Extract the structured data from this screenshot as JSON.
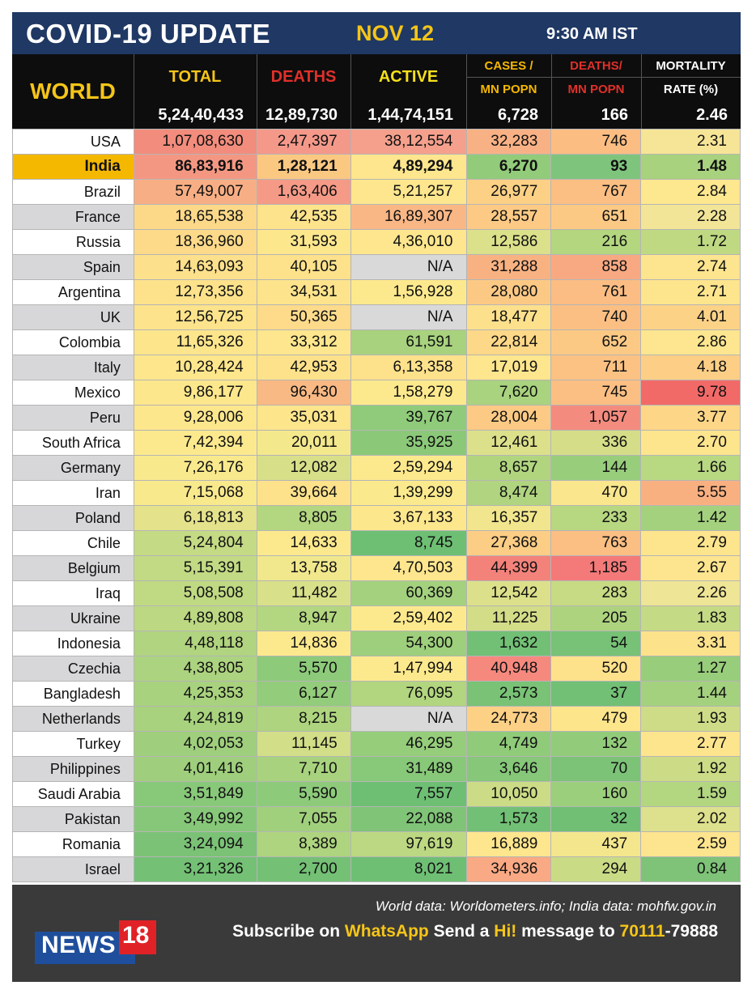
{
  "title": {
    "main": "COVID-19 UPDATE",
    "date": "NOV 12",
    "time": "9:30 AM IST"
  },
  "header": {
    "world_label": "WORLD",
    "columns": [
      {
        "line1": "TOTAL",
        "line2": "",
        "color": "#f5c518"
      },
      {
        "line1": "DEATHS",
        "line2": "",
        "color": "#e0302a"
      },
      {
        "line1": "ACTIVE",
        "line2": "",
        "color": "#f5e01a"
      },
      {
        "line1": "CASES /",
        "line2": "MN POPN",
        "color": "#f5b800"
      },
      {
        "line1": "DEATHS/",
        "line2": "MN POPN",
        "color": "#e0302a"
      },
      {
        "line1": "MORTALITY",
        "line2": "RATE (%)",
        "color": "#ffffff"
      }
    ],
    "world_values": [
      "5,24,40,433",
      "12,89,730",
      "1,44,74,151",
      "6,728",
      "166",
      "2.46"
    ]
  },
  "rows": [
    {
      "country": "USA",
      "total": "1,07,08,630",
      "deaths": "2,47,397",
      "active": "38,12,554",
      "cases_mn": "32,283",
      "deaths_mn": "746",
      "mortality": "2.31",
      "colors": [
        "#f28c7c",
        "#f4988a",
        "#f4a08c",
        "#f8b184",
        "#fbbd82",
        "#f6e596"
      ]
    },
    {
      "country": "India",
      "total": "86,83,916",
      "deaths": "1,28,121",
      "active": "4,89,294",
      "cases_mn": "6,270",
      "deaths_mn": "93",
      "mortality": "1.48",
      "highlight": true,
      "colors": [
        "#f49782",
        "#fbc882",
        "#fde68d",
        "#92cc7a",
        "#7fc47c",
        "#a8d27e"
      ]
    },
    {
      "country": "Brazil",
      "total": "57,49,007",
      "deaths": "1,63,406",
      "active": "5,21,257",
      "cases_mn": "26,977",
      "deaths_mn": "767",
      "mortality": "2.84",
      "colors": [
        "#f8ae84",
        "#f59a87",
        "#fde68d",
        "#fcd185",
        "#fbbe83",
        "#fde78f"
      ]
    },
    {
      "country": "France",
      "total": "18,65,538",
      "deaths": "42,535",
      "active": "16,89,307",
      "cases_mn": "28,557",
      "deaths_mn": "651",
      "mortality": "2.28",
      "colors": [
        "#fcd989",
        "#fde38b",
        "#f9b786",
        "#fcca84",
        "#fcc985",
        "#f2e597"
      ]
    },
    {
      "country": "Russia",
      "total": "18,36,960",
      "deaths": "31,593",
      "active": "4,36,010",
      "cases_mn": "12,586",
      "deaths_mn": "216",
      "mortality": "1.72",
      "colors": [
        "#fcda89",
        "#fde78d",
        "#fde68d",
        "#dbe08a",
        "#b3d67f",
        "#bfd983"
      ]
    },
    {
      "country": "Spain",
      "total": "14,63,093",
      "deaths": "40,105",
      "active": "N/A",
      "cases_mn": "31,288",
      "deaths_mn": "858",
      "mortality": "2.74",
      "colors": [
        "#fde08b",
        "#fde28b",
        "#d9d9d9",
        "#f8b282",
        "#f8a982",
        "#fde48e"
      ]
    },
    {
      "country": "Argentina",
      "total": "12,73,356",
      "deaths": "34,531",
      "active": "1,56,928",
      "cases_mn": "28,080",
      "deaths_mn": "761",
      "mortality": "2.71",
      "colors": [
        "#fde28b",
        "#fde48c",
        "#fde98d",
        "#fcc985",
        "#fbbd83",
        "#fde58e"
      ]
    },
    {
      "country": "UK",
      "total": "12,56,725",
      "deaths": "50,365",
      "active": "N/A",
      "cases_mn": "18,477",
      "deaths_mn": "740",
      "mortality": "4.01",
      "colors": [
        "#fde38b",
        "#fddb8a",
        "#d9d9d9",
        "#fde08c",
        "#fbbf83",
        "#fcd287"
      ]
    },
    {
      "country": "Colombia",
      "total": "11,65,326",
      "deaths": "33,312",
      "active": "61,591",
      "cases_mn": "22,814",
      "deaths_mn": "652",
      "mortality": "2.86",
      "colors": [
        "#fde58c",
        "#fde68d",
        "#a8d27e",
        "#fdd888",
        "#fcc985",
        "#fde68f"
      ]
    },
    {
      "country": "Italy",
      "total": "10,28,424",
      "deaths": "42,953",
      "active": "6,13,358",
      "cases_mn": "17,019",
      "deaths_mn": "711",
      "mortality": "4.18",
      "colors": [
        "#fde68c",
        "#fde28b",
        "#fde18b",
        "#fde68d",
        "#fbc283",
        "#fdcf86"
      ]
    },
    {
      "country": "Mexico",
      "total": "9,86,177",
      "deaths": "96,430",
      "active": "1,58,279",
      "cases_mn": "7,620",
      "deaths_mn": "745",
      "mortality": "9.78",
      "colors": [
        "#fde78c",
        "#f9b984",
        "#fde98d",
        "#a9d37e",
        "#fbbf83",
        "#f26a68"
      ]
    },
    {
      "country": "Peru",
      "total": "9,28,006",
      "deaths": "35,031",
      "active": "39,767",
      "cases_mn": "28,004",
      "deaths_mn": "1,057",
      "mortality": "3.77",
      "colors": [
        "#fde78d",
        "#fde58c",
        "#8fcb7a",
        "#fcca84",
        "#f48b7f",
        "#fdd787"
      ]
    },
    {
      "country": "South Africa",
      "total": "7,42,394",
      "deaths": "20,011",
      "active": "35,925",
      "cases_mn": "12,461",
      "deaths_mn": "336",
      "mortality": "2.70",
      "colors": [
        "#fce98d",
        "#f4e88d",
        "#8bc979",
        "#dce08a",
        "#d5dd88",
        "#fde58e"
      ]
    },
    {
      "country": "Germany",
      "total": "7,26,176",
      "deaths": "12,082",
      "active": "2,59,294",
      "cases_mn": "8,657",
      "deaths_mn": "144",
      "mortality": "1.66",
      "colors": [
        "#f9e98d",
        "#d8df89",
        "#fce98d",
        "#b1d57f",
        "#98cd7b",
        "#b9d882"
      ]
    },
    {
      "country": "Iran",
      "total": "7,15,068",
      "deaths": "39,664",
      "active": "1,39,299",
      "cases_mn": "8,474",
      "deaths_mn": "470",
      "mortality": "5.55",
      "colors": [
        "#f8e98d",
        "#fde28b",
        "#fbe98d",
        "#b0d47f",
        "#f9e68d",
        "#f9b081"
      ]
    },
    {
      "country": "Poland",
      "total": "6,18,813",
      "deaths": "8,805",
      "active": "3,67,133",
      "cases_mn": "16,357",
      "deaths_mn": "233",
      "mortality": "1.42",
      "colors": [
        "#e4e28b",
        "#b3d680",
        "#fde78d",
        "#f1e68d",
        "#b8d781",
        "#a4d17e"
      ]
    },
    {
      "country": "Chile",
      "total": "5,24,804",
      "deaths": "14,633",
      "active": "8,745",
      "cases_mn": "27,368",
      "deaths_mn": "763",
      "mortality": "2.79",
      "colors": [
        "#c4da84",
        "#fde98d",
        "#6ebf74",
        "#fccd85",
        "#fbbe83",
        "#fde58e"
      ]
    },
    {
      "country": "Belgium",
      "total": "5,15,391",
      "deaths": "13,758",
      "active": "4,70,503",
      "cases_mn": "44,399",
      "deaths_mn": "1,185",
      "mortality": "2.67",
      "colors": [
        "#c2da84",
        "#f1e78d",
        "#fde68d",
        "#f3827b",
        "#f37a79",
        "#fde58f"
      ]
    },
    {
      "country": "Iraq",
      "total": "5,08,508",
      "deaths": "11,482",
      "active": "60,369",
      "cases_mn": "12,542",
      "deaths_mn": "283",
      "mortality": "2.26",
      "colors": [
        "#c0d983",
        "#d8e08a",
        "#a4d17e",
        "#dce08a",
        "#c7da84",
        "#efe596"
      ]
    },
    {
      "country": "Ukraine",
      "total": "4,89,808",
      "deaths": "8,947",
      "active": "2,59,402",
      "cases_mn": "11,225",
      "deaths_mn": "205",
      "mortality": "1.83",
      "colors": [
        "#bcd882",
        "#b3d680",
        "#fce98d",
        "#d3dd88",
        "#aed37f",
        "#c5da84"
      ]
    },
    {
      "country": "Indonesia",
      "total": "4,48,118",
      "deaths": "14,836",
      "active": "54,300",
      "cases_mn": "1,632",
      "deaths_mn": "54",
      "mortality": "3.31",
      "colors": [
        "#b0d47f",
        "#fde98d",
        "#9ecf7c",
        "#72c075",
        "#77c276",
        "#fde28c"
      ]
    },
    {
      "country": "Czechia",
      "total": "4,38,805",
      "deaths": "5,570",
      "active": "1,47,994",
      "cases_mn": "40,948",
      "deaths_mn": "520",
      "mortality": "1.27",
      "colors": [
        "#acd37f",
        "#8dca7a",
        "#fde98d",
        "#f6897e",
        "#fde18b",
        "#98cd7b"
      ]
    },
    {
      "country": "Bangladesh",
      "total": "4,25,353",
      "deaths": "6,127",
      "active": "76,095",
      "cases_mn": "2,573",
      "deaths_mn": "37",
      "mortality": "1.44",
      "colors": [
        "#a8d27e",
        "#93cc7b",
        "#b2d57f",
        "#79c276",
        "#72c075",
        "#a4d17e"
      ]
    },
    {
      "country": "Netherlands",
      "total": "4,24,819",
      "deaths": "8,215",
      "active": "N/A",
      "cases_mn": "24,773",
      "deaths_mn": "479",
      "mortality": "1.93",
      "colors": [
        "#a8d27e",
        "#aed47f",
        "#d9d9d9",
        "#fcd186",
        "#fde58c",
        "#cfdc87"
      ]
    },
    {
      "country": "Turkey",
      "total": "4,02,053",
      "deaths": "11,145",
      "active": "46,295",
      "cases_mn": "4,749",
      "deaths_mn": "132",
      "mortality": "2.77",
      "colors": [
        "#9fcf7c",
        "#d3de88",
        "#96cd7b",
        "#90cb7a",
        "#92cc7b",
        "#fde58e"
      ]
    },
    {
      "country": "Philippines",
      "total": "4,01,416",
      "deaths": "7,710",
      "active": "31,489",
      "cases_mn": "3,646",
      "deaths_mn": "70",
      "mortality": "1.92",
      "colors": [
        "#9fcf7c",
        "#a8d27e",
        "#88c879",
        "#86c779",
        "#7cc377",
        "#ccdc86"
      ]
    },
    {
      "country": "Saudi Arabia",
      "total": "3,51,849",
      "deaths": "5,590",
      "active": "7,557",
      "cases_mn": "10,050",
      "deaths_mn": "160",
      "mortality": "1.59",
      "colors": [
        "#88c879",
        "#8dca7a",
        "#6ebf74",
        "#ccdc86",
        "#9ccf7c",
        "#b3d680"
      ]
    },
    {
      "country": "Pakistan",
      "total": "3,49,992",
      "deaths": "7,055",
      "active": "22,088",
      "cases_mn": "1,573",
      "deaths_mn": "32",
      "mortality": "2.02",
      "colors": [
        "#87c779",
        "#a1d07d",
        "#80c477",
        "#72c075",
        "#70bf74",
        "#dde08c"
      ]
    },
    {
      "country": "Romania",
      "total": "3,24,094",
      "deaths": "8,389",
      "active": "97,619",
      "cases_mn": "16,889",
      "deaths_mn": "437",
      "mortality": "2.59",
      "colors": [
        "#7bc276",
        "#aed47f",
        "#bcd882",
        "#fde68d",
        "#f4e68d",
        "#fde48e"
      ]
    },
    {
      "country": "Israel",
      "total": "3,21,326",
      "deaths": "2,700",
      "active": "8,021",
      "cases_mn": "34,936",
      "deaths_mn": "294",
      "mortality": "0.84",
      "colors": [
        "#74c075",
        "#74c075",
        "#6ebf74",
        "#f9a984",
        "#cadb85",
        "#7ec377"
      ]
    }
  ],
  "footer": {
    "source": "World data: Worldometers.info; India data: mohfw.gov.in",
    "subscribe_pre": "Subscribe on ",
    "whatsapp": "WhatsApp",
    "send_a": " Send a ",
    "hi": "Hi!",
    "message_to": " message to ",
    "number_a": "70111",
    "number_b": "-79888",
    "logo_text": "NEWS",
    "logo_num": "18"
  }
}
